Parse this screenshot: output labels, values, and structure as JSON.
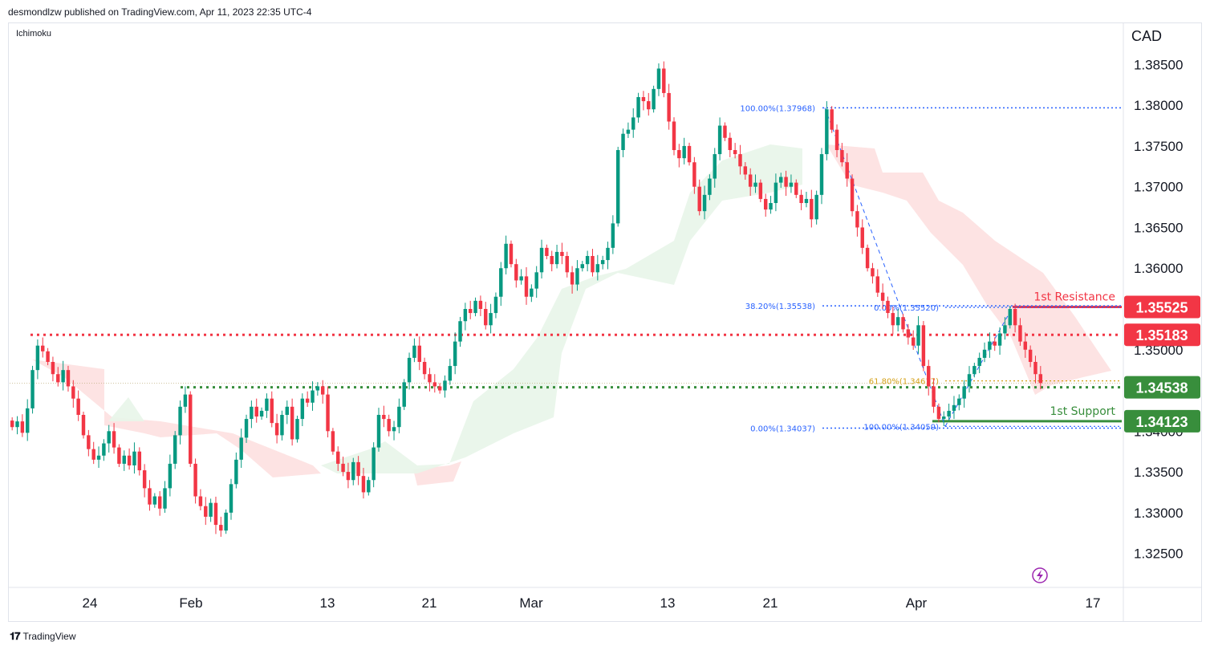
{
  "header": {
    "publisher": "desmondlzw published on TradingView.com, Apr 11, 2023 22:35 UTC-4"
  },
  "indicator_label": "Ichimoku",
  "currency_label": "CAD",
  "footer": {
    "brand": "TradingView"
  },
  "colors": {
    "up": "#089981",
    "down": "#f23645",
    "resistance": "#f23645",
    "support": "#388e3c",
    "fib": "#2962ff",
    "fib_gold": "#d4a017",
    "cloud_bull": "#e8f5e9",
    "cloud_bear": "#fde0e0"
  },
  "chart_data": {
    "type": "candlestick",
    "symbol_quote": "CAD",
    "y_axis": {
      "ticks": [
        "1.38500",
        "1.38000",
        "1.37500",
        "1.37000",
        "1.36500",
        "1.36000",
        "1.35500",
        "1.35000",
        "1.34500",
        "1.34000",
        "1.33500",
        "1.33000",
        "1.32500"
      ],
      "ylim": [
        1.3225,
        1.3875
      ]
    },
    "x_axis": {
      "ticks": [
        "24",
        "Feb",
        "13",
        "21",
        "Mar",
        "13",
        "21",
        "Apr",
        "17"
      ]
    },
    "price_labels": [
      {
        "value": "1.35525",
        "color": "#f23645"
      },
      {
        "value": "1.35183",
        "color": "#f23645"
      },
      {
        "value": "1.34538",
        "color": "#388e3c"
      },
      {
        "value": "1.34123",
        "color": "#388e3c"
      }
    ],
    "levels": [
      {
        "name": "1st Resistance",
        "value": 1.35525,
        "color": "#f23645"
      },
      {
        "name": "",
        "value": 1.35183,
        "color": "#f23645",
        "dotted": true
      },
      {
        "name": "",
        "value": 1.34538,
        "color": "#388e3c",
        "dotted": true
      },
      {
        "name": "1st Support",
        "value": 1.34123,
        "color": "#388e3c"
      }
    ],
    "fib_left": [
      {
        "label": "100.00%(1.37968)",
        "value": 1.37968
      },
      {
        "label": "38.20%(1.35538)",
        "value": 1.35538
      },
      {
        "label": "0.00%(1.34037)",
        "value": 1.34037
      }
    ],
    "fib_right": [
      {
        "label": "0.00%(1.35520)",
        "value": 1.3552
      },
      {
        "label": "61.80%(1.34617)",
        "value": 1.34617
      },
      {
        "label": "100.00%(1.34059)",
        "value": 1.34059
      }
    ],
    "last_price": 1.3459,
    "closes": [
      1.3405,
      1.3412,
      1.3398,
      1.3428,
      1.3475,
      1.3505,
      1.3498,
      1.3485,
      1.347,
      1.346,
      1.3475,
      1.3455,
      1.344,
      1.342,
      1.3395,
      1.3378,
      1.3365,
      1.337,
      1.3385,
      1.34,
      1.338,
      1.336,
      1.337,
      1.3358,
      1.3375,
      1.3352,
      1.333,
      1.331,
      1.332,
      1.3305,
      1.333,
      1.336,
      1.3395,
      1.343,
      1.3445,
      1.336,
      1.332,
      1.3308,
      1.3295,
      1.3312,
      1.3285,
      1.3278,
      1.33,
      1.3335,
      1.3365,
      1.3392,
      1.3415,
      1.343,
      1.3418,
      1.3425,
      1.344,
      1.341,
      1.3395,
      1.342,
      1.343,
      1.339,
      1.3415,
      1.344,
      1.3435,
      1.345,
      1.3455,
      1.3445,
      1.34,
      1.3375,
      1.336,
      1.335,
      1.334,
      1.3362,
      1.3345,
      1.3325,
      1.334,
      1.338,
      1.342,
      1.3415,
      1.34,
      1.3405,
      1.343,
      1.346,
      1.349,
      1.3505,
      1.3485,
      1.347,
      1.346,
      1.3455,
      1.345,
      1.3462,
      1.348,
      1.351,
      1.3535,
      1.355,
      1.3545,
      1.356,
      1.355,
      1.353,
      1.3545,
      1.3565,
      1.36,
      1.363,
      1.3605,
      1.3585,
      1.359,
      1.3565,
      1.3575,
      1.3595,
      1.3625,
      1.3615,
      1.3605,
      1.362,
      1.3615,
      1.3595,
      1.358,
      1.36,
      1.3605,
      1.3615,
      1.3595,
      1.3605,
      1.361,
      1.3625,
      1.3655,
      1.3745,
      1.3765,
      1.377,
      1.3785,
      1.381,
      1.3805,
      1.3795,
      1.382,
      1.3845,
      1.3815,
      1.378,
      1.3745,
      1.3735,
      1.375,
      1.373,
      1.37,
      1.367,
      1.369,
      1.371,
      1.374,
      1.3775,
      1.376,
      1.3745,
      1.374,
      1.3725,
      1.3715,
      1.37,
      1.3705,
      1.3685,
      1.3672,
      1.368,
      1.3705,
      1.3712,
      1.37,
      1.3705,
      1.369,
      1.368,
      1.3685,
      1.366,
      1.369,
      1.374,
      1.3795,
      1.377,
      1.3745,
      1.373,
      1.371,
      1.367,
      1.365,
      1.3625,
      1.36,
      1.359,
      1.357,
      1.356,
      1.3545,
      1.353,
      1.354,
      1.3525,
      1.3515,
      1.3505,
      1.353,
      1.348,
      1.3455,
      1.343,
      1.3415,
      1.3418,
      1.3425,
      1.3432,
      1.344,
      1.3455,
      1.347,
      1.348,
      1.349,
      1.35,
      1.351,
      1.3505,
      1.352,
      1.353,
      1.355,
      1.353,
      1.351,
      1.35,
      1.3485,
      1.347,
      1.3459
    ]
  }
}
